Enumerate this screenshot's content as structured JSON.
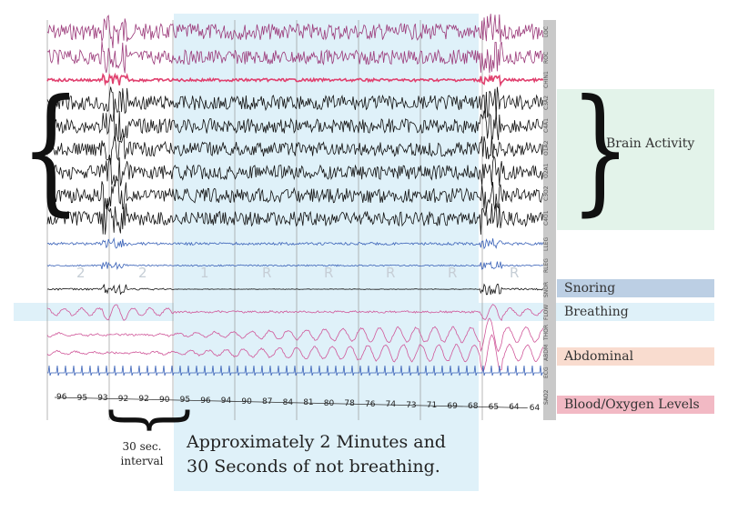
{
  "channels": [
    "LOC",
    "ROC",
    "CHIN1",
    "C3A2",
    "C4A1",
    "O1A2",
    "O2A1",
    "C3O2",
    "C4O1",
    "LLEG",
    "RLEG",
    "SNOR",
    "FLOW",
    "THOR",
    "ABDM",
    "ECG",
    "SAO2"
  ],
  "stages": [
    "2",
    "2",
    "1",
    "R",
    "R",
    "R",
    "R",
    "R"
  ],
  "sao2_values": [
    "96",
    "95",
    "93",
    "92",
    "92",
    "90",
    "95",
    "96",
    "94",
    "90",
    "87",
    "84",
    "81",
    "80",
    "78",
    "76",
    "74",
    "73",
    "71",
    "69",
    "68",
    "65",
    "64",
    "64"
  ],
  "annotations": {
    "brain": "Brain Activity",
    "snoring": "Snoring",
    "breathing": "Breathing",
    "abdominal": "Abdominal",
    "blood": "Blood/Oxygen Levels",
    "interval_line1": "30 sec.",
    "interval_line2": "interval",
    "caption_line1": "Approximately 2 Minutes and",
    "caption_line2": "30 Seconds of not breathing."
  },
  "colors": {
    "highlight": "#dff1f9",
    "brain_panel": "#e3f3ea",
    "snoring": "#bccfe4",
    "breathing": "#dff1f9",
    "abdominal": "#f9dccf",
    "blood": "#f2b9c4",
    "eog": "#9b3a7a",
    "chin": "#e0406e",
    "eeg": "#111111",
    "leg": "#3a62b8",
    "resp": "#d0589a"
  }
}
